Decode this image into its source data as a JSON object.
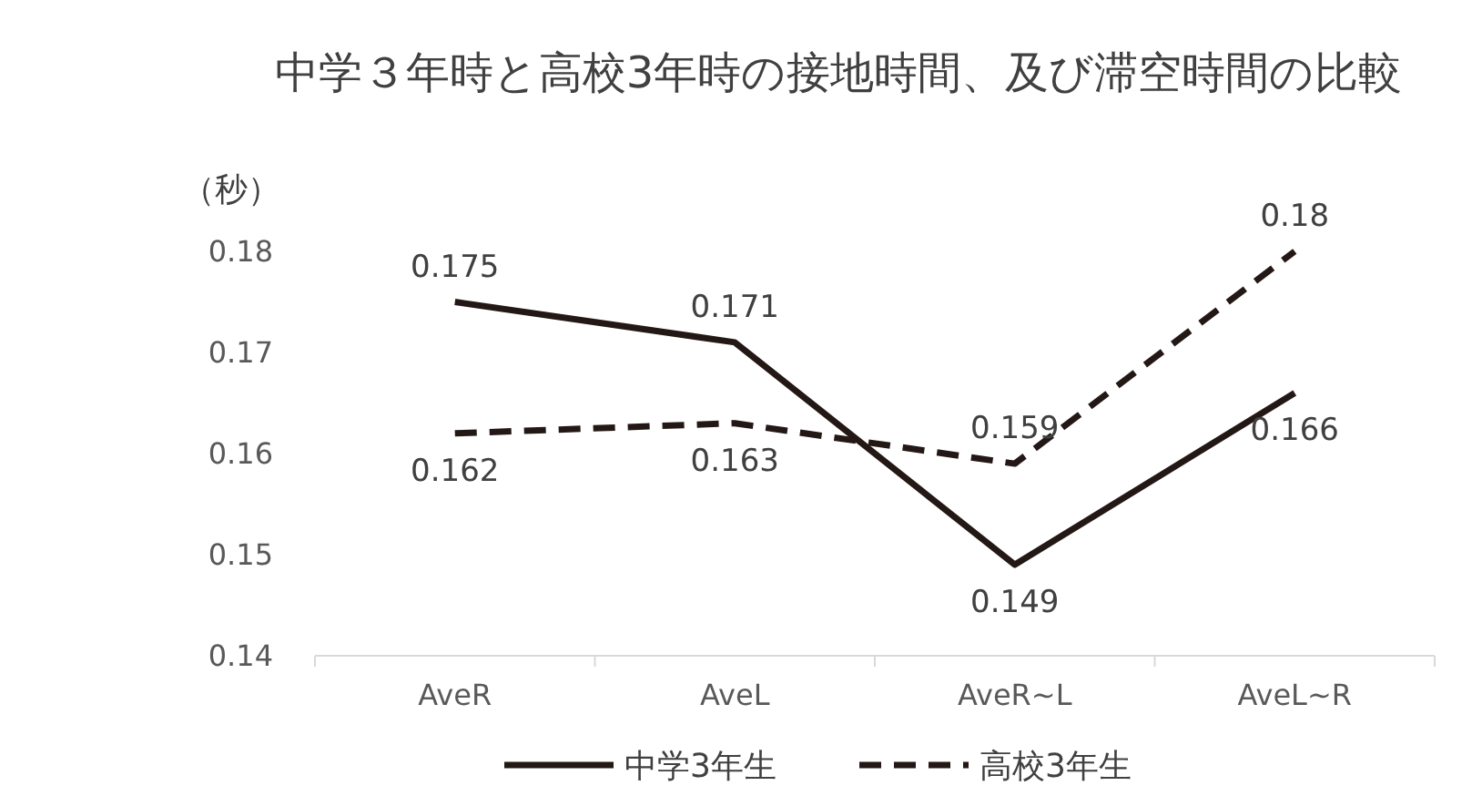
{
  "chart_data": {
    "type": "line",
    "title": "中学３年時と高校3年時の接地時間、及び滞空時間の比較",
    "ylabel": "（秒）",
    "categories": [
      "AveR",
      "AveL",
      "AveR~L",
      "AveL~R"
    ],
    "series": [
      {
        "name": "中学3年生",
        "color": "#231815",
        "line_style": "solid",
        "values": [
          0.175,
          0.171,
          0.149,
          0.166
        ]
      },
      {
        "name": "高校3年生",
        "color": "#231815",
        "line_style": "dashed",
        "values": [
          0.162,
          0.163,
          0.159,
          0.18
        ]
      }
    ],
    "ylim": [
      0.14,
      0.18
    ],
    "yticks": [
      0.14,
      0.15,
      0.16,
      0.17,
      0.18
    ],
    "data_labels": true,
    "legend": "bottom",
    "grid": false
  }
}
